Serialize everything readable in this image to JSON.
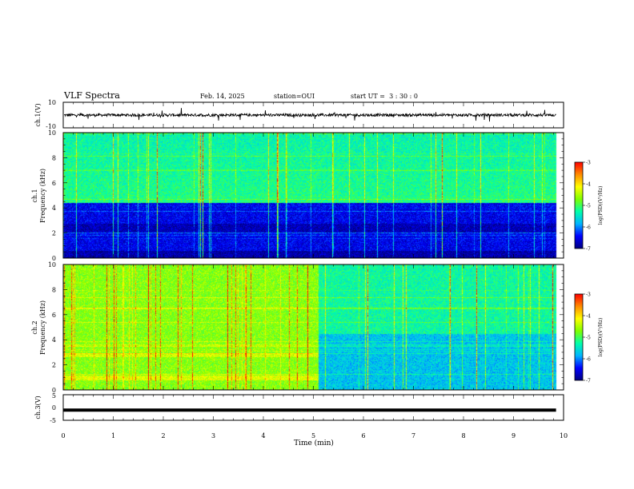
{
  "header": {
    "title": "VLF Spectra",
    "date": "Feb. 14, 2025",
    "station": "station=OUI",
    "start": "start UT =  3 : 30 : 0"
  },
  "colors": {
    "colormap": [
      "#000080",
      "#0000ff",
      "#00b4ff",
      "#00ffaa",
      "#7fff00",
      "#ffff00",
      "#ff8c00",
      "#ff0000",
      "#ffffff"
    ]
  },
  "chart_data": [
    {
      "type": "line",
      "panel": "ch1-waveform",
      "ylabel": "ch.1(V)",
      "ylim": [
        -10,
        10
      ],
      "yticks": [
        "10",
        "-10"
      ],
      "baseline": 0,
      "xlim": [
        0,
        10
      ],
      "note_values": "dense noisy trace around 0 V, spikes up to about ±6 V"
    },
    {
      "type": "heatmap",
      "panel": "ch1-spectrogram",
      "ylabel": "ch.1\nFrequency (kHz)",
      "xlim": [
        0,
        10
      ],
      "ylim": [
        0,
        10
      ],
      "yticks": [
        "0",
        "2",
        "4",
        "6",
        "8",
        "10"
      ],
      "data_end_min": 9.85,
      "colorbar": {
        "label": "log(PSD)(V²/Hz)",
        "range": [
          -7,
          -3
        ],
        "ticks": [
          "-3",
          "-4",
          "-5",
          "-6",
          "-7"
        ]
      }
    },
    {
      "type": "heatmap",
      "panel": "ch2-spectrogram",
      "ylabel": "ch.2\nFrequency (kHz)",
      "xlim": [
        0,
        10
      ],
      "ylim": [
        0,
        10
      ],
      "yticks": [
        "0",
        "2",
        "4",
        "6",
        "8",
        "10"
      ],
      "data_end_min": 9.85,
      "colorbar": {
        "label": "log(PSD)(V²/Hz)",
        "range": [
          -7,
          -3
        ],
        "ticks": [
          "-3",
          "-4",
          "-5",
          "-6",
          "-7"
        ]
      }
    },
    {
      "type": "line",
      "panel": "ch3-waveform",
      "ylabel": "ch.3(V)",
      "ylim": [
        -5,
        5
      ],
      "yticks": [
        "5",
        "0",
        "-5"
      ],
      "baseline": -1.0,
      "xlim": [
        0,
        10
      ],
      "xlabel": "Time (min)",
      "xticks": [
        "0",
        "1",
        "2",
        "3",
        "4",
        "5",
        "6",
        "7",
        "8",
        "9",
        "10"
      ]
    }
  ]
}
